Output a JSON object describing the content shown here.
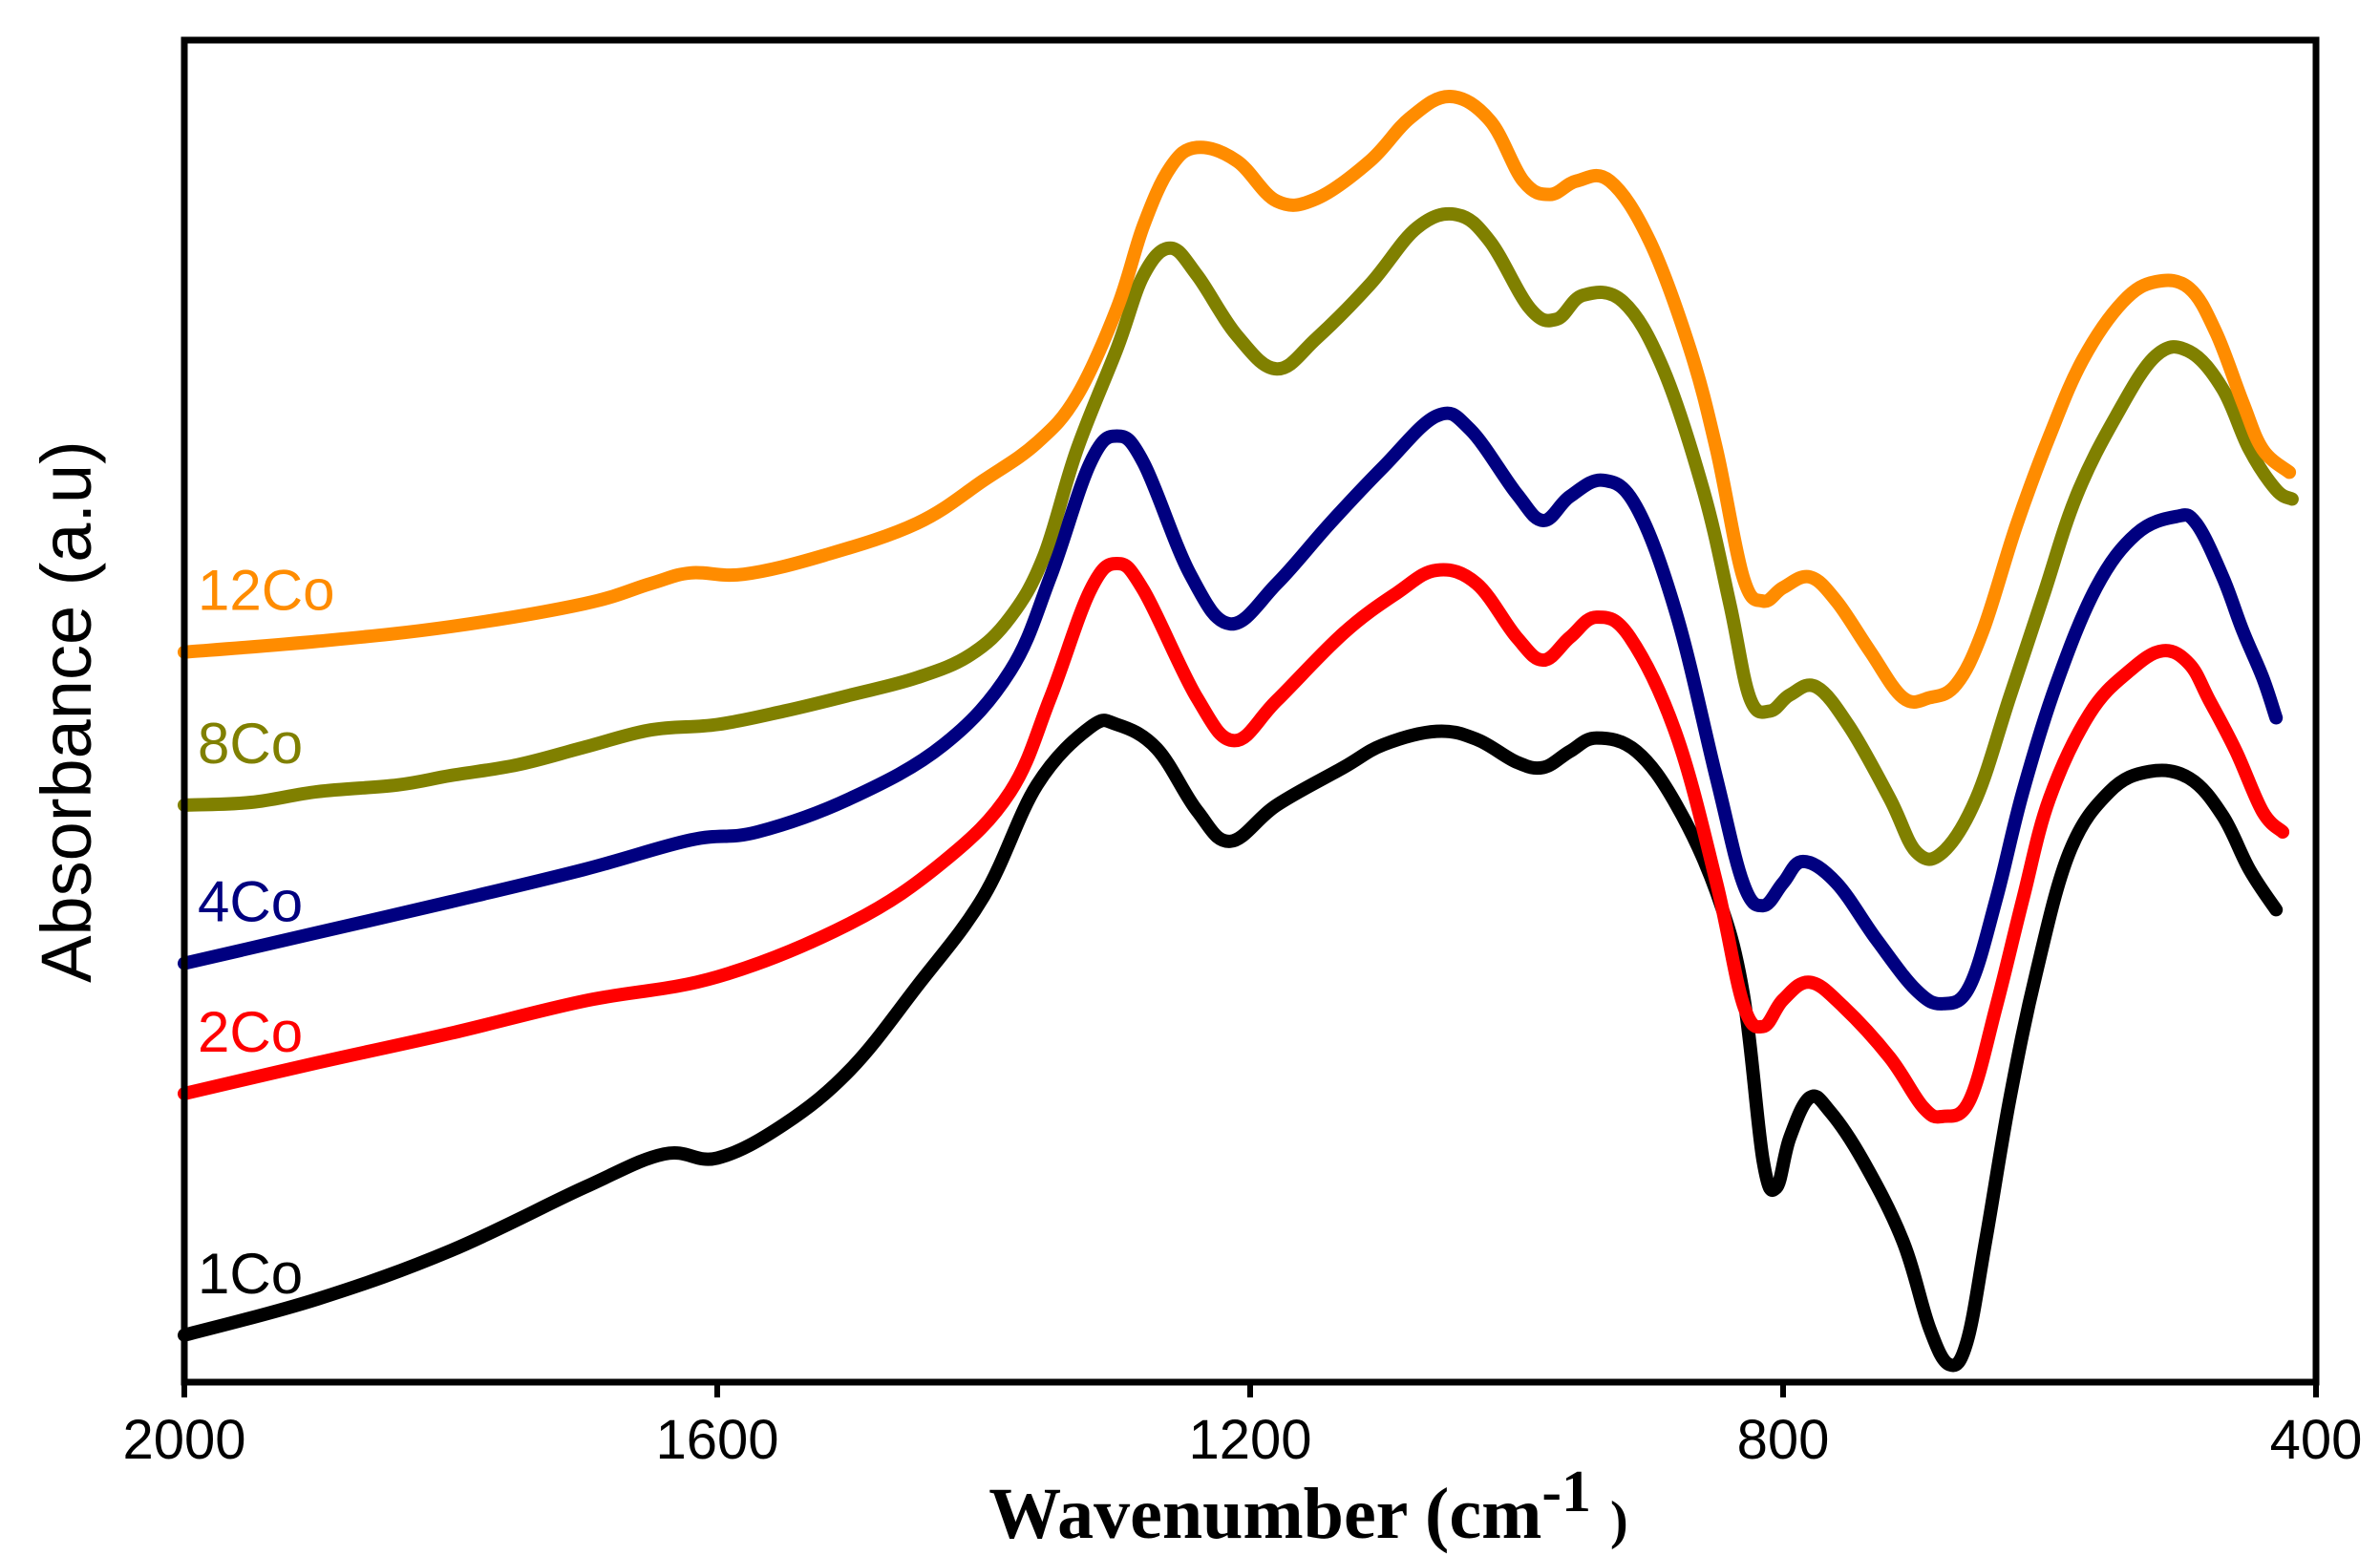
{
  "chart_data": {
    "type": "line",
    "title": "",
    "xlabel": "Wavenumber (cm",
    "xlabel_sup": "-1",
    "xlabel_close": ")",
    "ylabel": "Absorbance (a.u)",
    "xlim": [
      2000,
      400
    ],
    "ylim": [
      0,
      10
    ],
    "x_ticks": [
      2000,
      1600,
      1200,
      800,
      400
    ],
    "x_tick_labels": [
      "2000",
      "1600",
      "1200",
      "800",
      "400"
    ],
    "y_ticks_shown": false,
    "grid": false,
    "series": [
      {
        "name": "1Co",
        "color": "#000000",
        "points": [
          [
            2000,
            0.35
          ],
          [
            1900,
            0.62
          ],
          [
            1800,
            0.98
          ],
          [
            1700,
            1.45
          ],
          [
            1640,
            1.7
          ],
          [
            1600,
            1.67
          ],
          [
            1550,
            1.92
          ],
          [
            1500,
            2.33
          ],
          [
            1450,
            2.95
          ],
          [
            1400,
            3.62
          ],
          [
            1360,
            4.45
          ],
          [
            1320,
            4.88
          ],
          [
            1300,
            4.9
          ],
          [
            1270,
            4.72
          ],
          [
            1240,
            4.26
          ],
          [
            1215,
            4.03
          ],
          [
            1180,
            4.3
          ],
          [
            1130,
            4.58
          ],
          [
            1100,
            4.75
          ],
          [
            1060,
            4.85
          ],
          [
            1030,
            4.79
          ],
          [
            1000,
            4.62
          ],
          [
            980,
            4.58
          ],
          [
            960,
            4.7
          ],
          [
            940,
            4.8
          ],
          [
            910,
            4.7
          ],
          [
            880,
            4.3
          ],
          [
            850,
            3.65
          ],
          [
            830,
            2.9
          ],
          [
            815,
            1.65
          ],
          [
            805,
            1.45
          ],
          [
            795,
            1.82
          ],
          [
            780,
            2.12
          ],
          [
            765,
            2.02
          ],
          [
            740,
            1.65
          ],
          [
            710,
            1.05
          ],
          [
            690,
            0.4
          ],
          [
            675,
            0.13
          ],
          [
            662,
            0.3
          ],
          [
            648,
            1.05
          ],
          [
            630,
            2.1
          ],
          [
            610,
            3.05
          ],
          [
            585,
            3.95
          ],
          [
            555,
            4.4
          ],
          [
            525,
            4.55
          ],
          [
            495,
            4.5
          ],
          [
            470,
            4.22
          ],
          [
            450,
            3.82
          ],
          [
            430,
            3.52
          ]
        ]
      },
      {
        "name": "2Co",
        "color": "#ff0000",
        "points": [
          [
            2000,
            2.15
          ],
          [
            1900,
            2.38
          ],
          [
            1800,
            2.6
          ],
          [
            1700,
            2.84
          ],
          [
            1600,
            3.02
          ],
          [
            1500,
            3.42
          ],
          [
            1430,
            3.88
          ],
          [
            1380,
            4.4
          ],
          [
            1350,
            5.1
          ],
          [
            1320,
            5.9
          ],
          [
            1300,
            6.1
          ],
          [
            1280,
            5.9
          ],
          [
            1240,
            5.1
          ],
          [
            1212,
            4.78
          ],
          [
            1180,
            5.08
          ],
          [
            1130,
            5.58
          ],
          [
            1090,
            5.88
          ],
          [
            1060,
            6.05
          ],
          [
            1030,
            5.95
          ],
          [
            1000,
            5.55
          ],
          [
            980,
            5.38
          ],
          [
            960,
            5.55
          ],
          [
            940,
            5.7
          ],
          [
            915,
            5.55
          ],
          [
            880,
            4.82
          ],
          [
            850,
            3.72
          ],
          [
            830,
            2.82
          ],
          [
            815,
            2.65
          ],
          [
            800,
            2.85
          ],
          [
            780,
            2.98
          ],
          [
            755,
            2.8
          ],
          [
            720,
            2.42
          ],
          [
            695,
            2.05
          ],
          [
            680,
            1.98
          ],
          [
            660,
            2.1
          ],
          [
            640,
            2.8
          ],
          [
            620,
            3.6
          ],
          [
            600,
            4.35
          ],
          [
            570,
            4.98
          ],
          [
            540,
            5.3
          ],
          [
            515,
            5.45
          ],
          [
            495,
            5.35
          ],
          [
            480,
            5.08
          ],
          [
            460,
            4.7
          ],
          [
            440,
            4.25
          ],
          [
            425,
            4.1
          ]
        ]
      },
      {
        "name": "4Co",
        "color": "#000080",
        "points": [
          [
            2000,
            3.12
          ],
          [
            1900,
            3.35
          ],
          [
            1800,
            3.58
          ],
          [
            1700,
            3.82
          ],
          [
            1620,
            4.04
          ],
          [
            1570,
            4.1
          ],
          [
            1500,
            4.35
          ],
          [
            1430,
            4.75
          ],
          [
            1380,
            5.3
          ],
          [
            1350,
            6.0
          ],
          [
            1320,
            6.85
          ],
          [
            1300,
            7.05
          ],
          [
            1280,
            6.85
          ],
          [
            1245,
            6.02
          ],
          [
            1215,
            5.65
          ],
          [
            1180,
            5.95
          ],
          [
            1140,
            6.4
          ],
          [
            1100,
            6.82
          ],
          [
            1060,
            7.2
          ],
          [
            1035,
            7.1
          ],
          [
            1000,
            6.62
          ],
          [
            980,
            6.42
          ],
          [
            960,
            6.6
          ],
          [
            935,
            6.72
          ],
          [
            910,
            6.52
          ],
          [
            880,
            5.72
          ],
          [
            850,
            4.5
          ],
          [
            830,
            3.72
          ],
          [
            815,
            3.55
          ],
          [
            800,
            3.72
          ],
          [
            785,
            3.88
          ],
          [
            760,
            3.72
          ],
          [
            730,
            3.3
          ],
          [
            700,
            2.92
          ],
          [
            680,
            2.82
          ],
          [
            660,
            2.95
          ],
          [
            640,
            3.6
          ],
          [
            620,
            4.4
          ],
          [
            595,
            5.2
          ],
          [
            565,
            5.92
          ],
          [
            535,
            6.32
          ],
          [
            505,
            6.45
          ],
          [
            490,
            6.4
          ],
          [
            470,
            6.0
          ],
          [
            455,
            5.6
          ],
          [
            440,
            5.25
          ],
          [
            430,
            4.95
          ]
        ]
      },
      {
        "name": "8Co",
        "color": "#808000",
        "points": [
          [
            2000,
            4.3
          ],
          [
            1950,
            4.32
          ],
          [
            1900,
            4.4
          ],
          [
            1840,
            4.45
          ],
          [
            1800,
            4.52
          ],
          [
            1750,
            4.6
          ],
          [
            1700,
            4.73
          ],
          [
            1650,
            4.86
          ],
          [
            1600,
            4.9
          ],
          [
            1550,
            5.0
          ],
          [
            1500,
            5.12
          ],
          [
            1450,
            5.25
          ],
          [
            1410,
            5.42
          ],
          [
            1380,
            5.7
          ],
          [
            1355,
            6.15
          ],
          [
            1330,
            6.95
          ],
          [
            1300,
            7.7
          ],
          [
            1280,
            8.25
          ],
          [
            1260,
            8.45
          ],
          [
            1240,
            8.25
          ],
          [
            1210,
            7.8
          ],
          [
            1180,
            7.55
          ],
          [
            1150,
            7.78
          ],
          [
            1110,
            8.18
          ],
          [
            1075,
            8.6
          ],
          [
            1045,
            8.7
          ],
          [
            1020,
            8.5
          ],
          [
            990,
            8.0
          ],
          [
            970,
            7.92
          ],
          [
            950,
            8.1
          ],
          [
            920,
            8.05
          ],
          [
            890,
            7.55
          ],
          [
            860,
            6.65
          ],
          [
            840,
            5.8
          ],
          [
            825,
            5.1
          ],
          [
            810,
            5.0
          ],
          [
            795,
            5.12
          ],
          [
            775,
            5.18
          ],
          [
            750,
            4.88
          ],
          [
            720,
            4.35
          ],
          [
            700,
            3.95
          ],
          [
            680,
            3.95
          ],
          [
            655,
            4.35
          ],
          [
            630,
            5.1
          ],
          [
            605,
            5.85
          ],
          [
            580,
            6.6
          ],
          [
            550,
            7.2
          ],
          [
            520,
            7.65
          ],
          [
            495,
            7.68
          ],
          [
            470,
            7.4
          ],
          [
            450,
            6.95
          ],
          [
            430,
            6.65
          ],
          [
            418,
            6.58
          ]
        ]
      },
      {
        "name": "12Co",
        "color": "#ff8c00",
        "points": [
          [
            2000,
            5.44
          ],
          [
            1900,
            5.52
          ],
          [
            1800,
            5.63
          ],
          [
            1700,
            5.8
          ],
          [
            1650,
            5.95
          ],
          [
            1620,
            6.03
          ],
          [
            1580,
            6.02
          ],
          [
            1520,
            6.16
          ],
          [
            1450,
            6.4
          ],
          [
            1400,
            6.72
          ],
          [
            1360,
            7.0
          ],
          [
            1330,
            7.35
          ],
          [
            1300,
            8.0
          ],
          [
            1280,
            8.62
          ],
          [
            1260,
            9.05
          ],
          [
            1240,
            9.2
          ],
          [
            1210,
            9.1
          ],
          [
            1180,
            8.8
          ],
          [
            1150,
            8.82
          ],
          [
            1110,
            9.1
          ],
          [
            1080,
            9.42
          ],
          [
            1050,
            9.58
          ],
          [
            1020,
            9.4
          ],
          [
            995,
            8.95
          ],
          [
            975,
            8.85
          ],
          [
            955,
            8.95
          ],
          [
            930,
            8.95
          ],
          [
            900,
            8.5
          ],
          [
            870,
            7.7
          ],
          [
            850,
            6.95
          ],
          [
            830,
            6.0
          ],
          [
            815,
            5.82
          ],
          [
            800,
            5.92
          ],
          [
            780,
            6.0
          ],
          [
            760,
            5.82
          ],
          [
            735,
            5.45
          ],
          [
            710,
            5.1
          ],
          [
            690,
            5.1
          ],
          [
            670,
            5.2
          ],
          [
            650,
            5.6
          ],
          [
            625,
            6.38
          ],
          [
            600,
            7.05
          ],
          [
            575,
            7.62
          ],
          [
            545,
            8.05
          ],
          [
            520,
            8.2
          ],
          [
            495,
            8.15
          ],
          [
            475,
            7.82
          ],
          [
            455,
            7.3
          ],
          [
            440,
            6.95
          ],
          [
            420,
            6.78
          ]
        ]
      }
    ],
    "annotations": [
      {
        "text": "12Co",
        "series": "12Co",
        "color": "#ff8c00"
      },
      {
        "text": "8Co",
        "series": "8Co",
        "color": "#808000"
      },
      {
        "text": "4Co",
        "series": "4Co",
        "color": "#000080"
      },
      {
        "text": "2Co",
        "series": "2Co",
        "color": "#ff0000"
      },
      {
        "text": "1Co",
        "series": "1Co",
        "color": "#000000"
      }
    ]
  }
}
